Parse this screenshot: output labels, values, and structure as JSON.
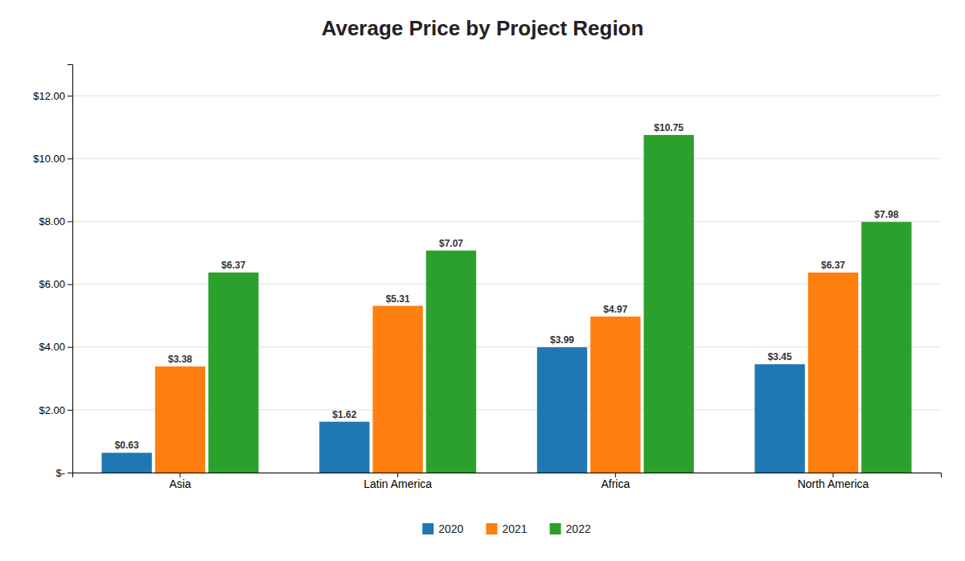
{
  "chart_data": {
    "type": "bar",
    "title": "Average Price by Project Region",
    "categories": [
      "Asia",
      "Latin America",
      "Africa",
      "North America"
    ],
    "series": [
      {
        "name": "2020",
        "values": [
          0.63,
          1.62,
          3.99,
          3.45
        ],
        "value_labels": [
          "$0.63",
          "$1.62",
          "$3.99",
          "$3.45"
        ]
      },
      {
        "name": "2021",
        "values": [
          3.38,
          5.31,
          4.97,
          6.37
        ],
        "value_labels": [
          "$3.38",
          "$5.31",
          "$4.97",
          "$6.37"
        ]
      },
      {
        "name": "2022",
        "values": [
          6.37,
          7.07,
          10.75,
          7.98
        ],
        "value_labels": [
          "$6.37",
          "$7.07",
          "$10.75",
          "$7.98"
        ]
      }
    ],
    "ylim": [
      0,
      13
    ],
    "yticks": [
      {
        "value": 0,
        "label": "$-"
      },
      {
        "value": 2,
        "label": "$2.00"
      },
      {
        "value": 4,
        "label": "$4.00"
      },
      {
        "value": 6,
        "label": "$6.00"
      },
      {
        "value": 8,
        "label": "$8.00"
      },
      {
        "value": 10,
        "label": "$10.00"
      },
      {
        "value": 12,
        "label": "$12.00"
      }
    ],
    "grid": true,
    "data_labels": true,
    "legend": "bottom"
  }
}
